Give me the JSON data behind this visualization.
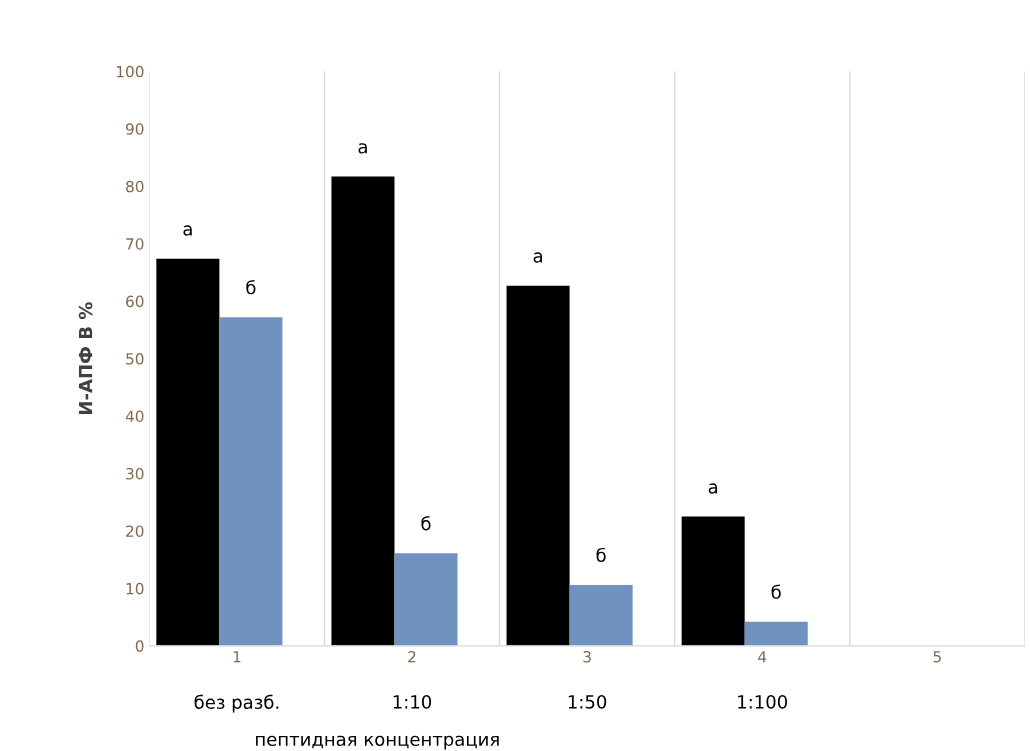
{
  "chart_data": {
    "type": "bar",
    "ylabel": "И-АПФ В %",
    "xlabel": "пептидная концентрация",
    "categories": [
      "1",
      "2",
      "3",
      "4",
      "5"
    ],
    "series": [
      {
        "color": "#000000",
        "values": [
          67.4,
          81.7,
          62.7,
          22.5,
          null
        ]
      },
      {
        "color": "#7092be",
        "values": [
          57.2,
          16.1,
          10.6,
          4.2,
          null
        ]
      }
    ],
    "ylim": [
      0,
      100
    ],
    "yticks": [
      0,
      10,
      20,
      30,
      40,
      50,
      60,
      70,
      80,
      90,
      100
    ],
    "grid": "x",
    "legend": false,
    "annotations": [
      "а",
      "б",
      "а",
      "б",
      "а",
      "б",
      "а",
      "б",
      "без разб.",
      "1:10",
      "1:50",
      "1:100"
    ]
  }
}
